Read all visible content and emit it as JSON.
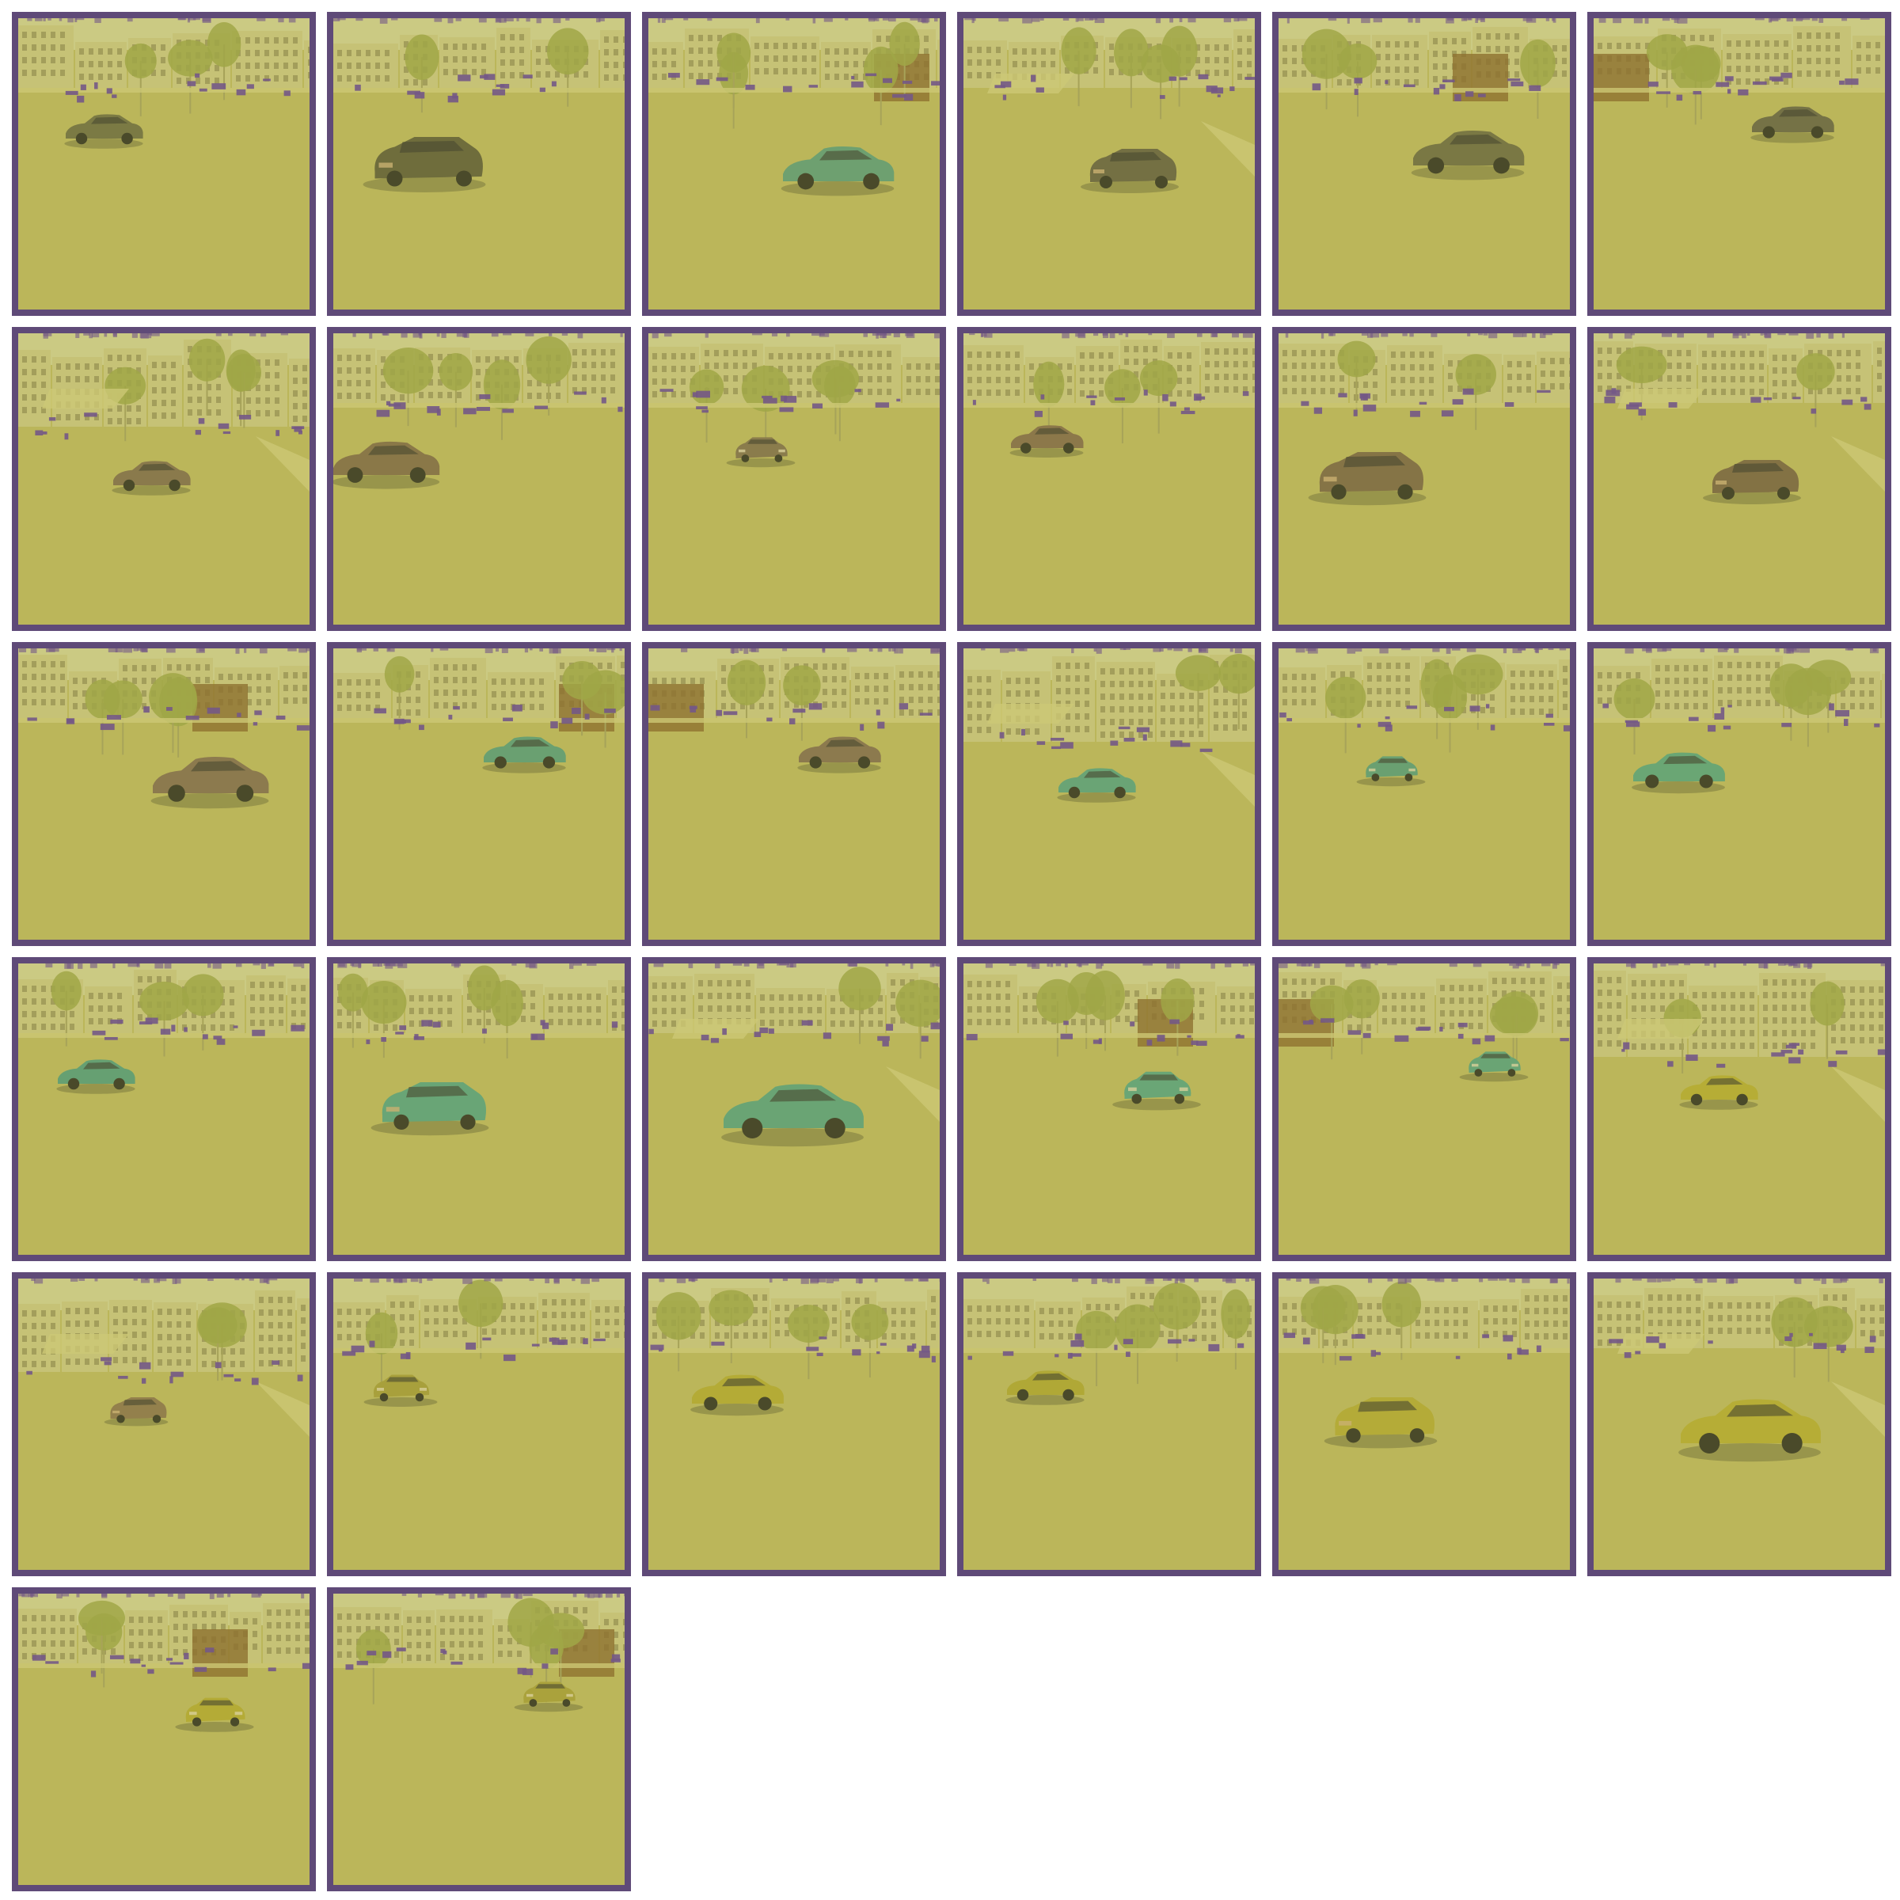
{
  "grid": {
    "columns": 6,
    "rows": 6,
    "tile_count": 32
  },
  "colors": {
    "frame": "#5f4a78",
    "ground": "#bcb85c",
    "ground_dark": "#b2ad54",
    "sky": "#cfcf8a",
    "building": "#c9c57c",
    "building_dark": "#a5a25a",
    "window": "#7f7c44",
    "brick": "#8a6a2c",
    "tree": "#9ea645",
    "noise": "#6b4d8e",
    "sidewalk": "#cfcc7a"
  },
  "tiles": [
    {
      "scene": "street-left",
      "car": {
        "color": "#7b7a44",
        "view": "side"
      }
    },
    {
      "scene": "plaza",
      "car": {
        "color": "#6f6d3c",
        "view": "rear"
      }
    },
    {
      "scene": "brick-corner",
      "car": {
        "color": "#6ea070",
        "view": "side"
      }
    },
    {
      "scene": "road-fork",
      "car": {
        "color": "#747043",
        "view": "rear"
      }
    },
    {
      "scene": "brick-right",
      "car": {
        "color": "#7a7844",
        "view": "side"
      }
    },
    {
      "scene": "brick-far",
      "car": {
        "color": "#757246",
        "view": "side"
      }
    },
    {
      "scene": "intersection",
      "car": {
        "color": "#8a7a4c",
        "view": "side"
      }
    },
    {
      "scene": "trees-town",
      "car": {
        "color": "#8a7848",
        "view": "side"
      }
    },
    {
      "scene": "tree-right",
      "car": {
        "color": "#8a7c4c",
        "view": "front"
      }
    },
    {
      "scene": "street-left",
      "car": {
        "color": "#8c784a",
        "view": "side"
      }
    },
    {
      "scene": "plaza",
      "car": {
        "color": "#857446",
        "view": "rear"
      }
    },
    {
      "scene": "road-fork",
      "car": {
        "color": "#837244",
        "view": "rear"
      }
    },
    {
      "scene": "brick-right",
      "car": {
        "color": "#8c7a4e",
        "view": "side"
      }
    },
    {
      "scene": "brick-corner",
      "car": {
        "color": "#6aa071",
        "view": "side"
      }
    },
    {
      "scene": "brick-far",
      "car": {
        "color": "#8c7a4e",
        "view": "side"
      }
    },
    {
      "scene": "intersection",
      "car": {
        "color": "#6aa475",
        "view": "side"
      }
    },
    {
      "scene": "trees-town",
      "car": {
        "color": "#6aa071",
        "view": "front"
      }
    },
    {
      "scene": "tree-right",
      "car": {
        "color": "#6aa674",
        "view": "side"
      }
    },
    {
      "scene": "street-left",
      "car": {
        "color": "#66a072",
        "view": "side"
      }
    },
    {
      "scene": "plaza",
      "car": {
        "color": "#69a576",
        "view": "rear"
      }
    },
    {
      "scene": "road-fork",
      "car": {
        "color": "#6aa474",
        "view": "side"
      }
    },
    {
      "scene": "brick-right",
      "car": {
        "color": "#6aa676",
        "view": "front"
      }
    },
    {
      "scene": "brick-far",
      "car": {
        "color": "#6aa474",
        "view": "front"
      }
    },
    {
      "scene": "intersection",
      "car": {
        "color": "#b6ad36",
        "view": "side"
      }
    },
    {
      "scene": "intersection",
      "car": {
        "color": "#93804c",
        "view": "rear"
      }
    },
    {
      "scene": "trees-town",
      "car": {
        "color": "#a8a03c",
        "view": "front"
      }
    },
    {
      "scene": "tree-right",
      "car": {
        "color": "#b4ab36",
        "view": "side"
      }
    },
    {
      "scene": "street-left",
      "car": {
        "color": "#b0a836",
        "view": "side"
      }
    },
    {
      "scene": "plaza",
      "car": {
        "color": "#b4ab38",
        "view": "rear"
      }
    },
    {
      "scene": "road-fork",
      "car": {
        "color": "#b6ad36",
        "view": "side"
      }
    },
    {
      "scene": "brick-right",
      "car": {
        "color": "#b4ab36",
        "view": "front"
      }
    },
    {
      "scene": "brick-corner",
      "car": {
        "color": "#aaa23c",
        "view": "front"
      }
    }
  ]
}
